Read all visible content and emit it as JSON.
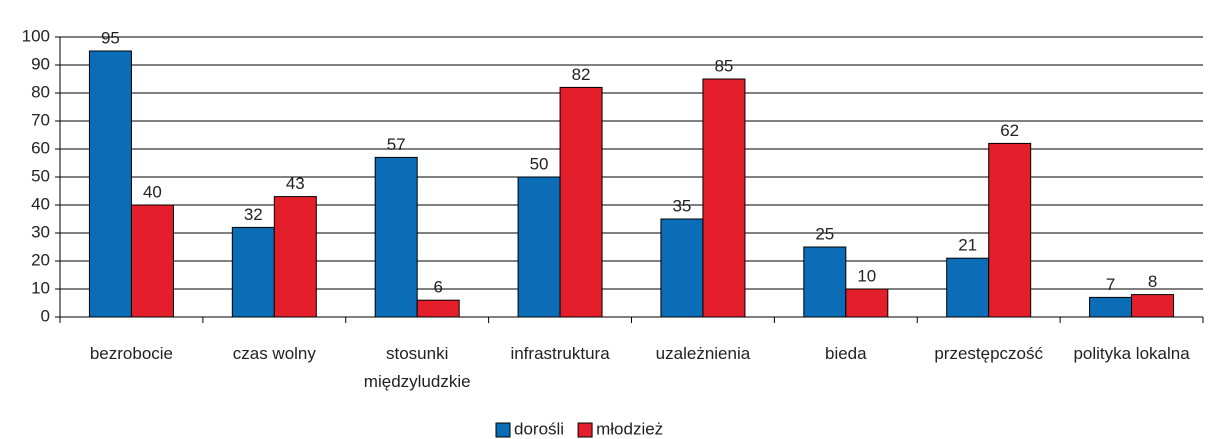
{
  "chart_data": {
    "type": "bar",
    "categories": [
      "bezrobocie",
      "czas wolny",
      "stosunki międzyludzkie",
      "infrastruktura",
      "uzależnienia",
      "bieda",
      "przestępczość",
      "polityka lokalna"
    ],
    "series": [
      {
        "name": "dorośli",
        "color": "#0a6db6",
        "values": [
          95,
          32,
          57,
          50,
          35,
          25,
          21,
          7
        ]
      },
      {
        "name": "młodzież",
        "color": "#e41f2b",
        "values": [
          40,
          43,
          6,
          82,
          85,
          10,
          62,
          8
        ]
      }
    ],
    "ylim": [
      0,
      100
    ],
    "yticks": [
      0,
      10,
      20,
      30,
      40,
      50,
      60,
      70,
      80,
      90,
      100
    ],
    "grid": true,
    "legend": "bottom"
  }
}
